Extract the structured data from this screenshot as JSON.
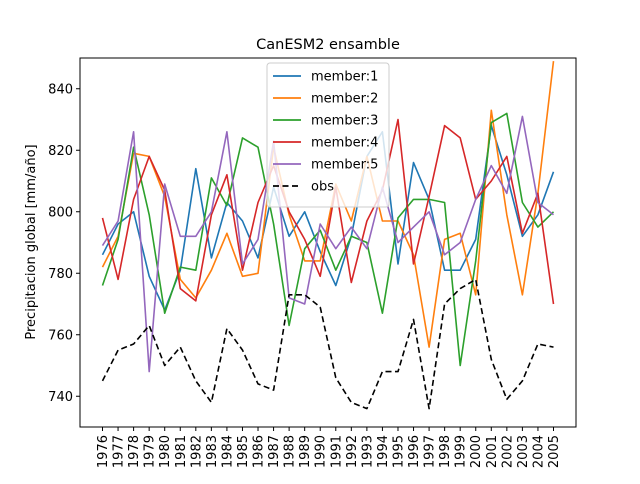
{
  "chart_data": {
    "type": "line",
    "title": "CanESM2 ensamble",
    "xlabel": "",
    "ylabel": "Precipitacion global [mm/año]",
    "x": [
      "1976",
      "1977",
      "1978",
      "1979",
      "1980",
      "1981",
      "1982",
      "1983",
      "1984",
      "1985",
      "1986",
      "1987",
      "1988",
      "1989",
      "1990",
      "1991",
      "1992",
      "1993",
      "1994",
      "1995",
      "1996",
      "1997",
      "1998",
      "1999",
      "2000",
      "2001",
      "2002",
      "2003",
      "2004",
      "2005"
    ],
    "ylim": [
      730,
      850
    ],
    "yticks": [
      740,
      760,
      780,
      800,
      820,
      840
    ],
    "grid": false,
    "legend_position": "upper-center",
    "series": [
      {
        "name": "member:1",
        "color": "#1f77b4",
        "dash": false,
        "values": [
          786,
          796,
          800,
          779,
          768,
          781,
          814,
          785,
          803,
          797,
          785,
          808,
          792,
          800,
          787,
          776,
          792,
          818,
          826,
          783,
          816,
          804,
          781,
          781,
          791,
          828,
          812,
          792,
          799,
          813
        ]
      },
      {
        "name": "member:2",
        "color": "#ff7f0e",
        "dash": false,
        "values": [
          782,
          792,
          819,
          818,
          805,
          778,
          772,
          781,
          793,
          779,
          780,
          821,
          799,
          784,
          784,
          809,
          797,
          818,
          797,
          797,
          786,
          756,
          791,
          793,
          773,
          833,
          799,
          773,
          806,
          849
        ]
      },
      {
        "name": "member:3",
        "color": "#2ca02c",
        "dash": false,
        "values": [
          776,
          791,
          821,
          799,
          767,
          782,
          781,
          811,
          802,
          824,
          821,
          796,
          763,
          788,
          794,
          781,
          792,
          790,
          767,
          798,
          804,
          804,
          803,
          750,
          784,
          829,
          832,
          803,
          795,
          800
        ]
      },
      {
        "name": "member:4",
        "color": "#d62728",
        "dash": false,
        "values": [
          798,
          778,
          804,
          818,
          807,
          775,
          771,
          799,
          812,
          781,
          803,
          815,
          800,
          791,
          779,
          808,
          777,
          797,
          807,
          830,
          783,
          805,
          828,
          824,
          804,
          810,
          818,
          793,
          806,
          770
        ]
      },
      {
        "name": "member:5",
        "color": "#9467bd",
        "dash": false,
        "values": [
          789,
          797,
          826,
          748,
          809,
          792,
          792,
          800,
          826,
          783,
          791,
          823,
          772,
          770,
          796,
          788,
          795,
          788,
          808,
          790,
          795,
          800,
          786,
          790,
          804,
          815,
          806,
          831,
          803,
          799
        ]
      },
      {
        "name": "obs",
        "color": "#000000",
        "dash": true,
        "values": [
          745,
          755,
          757,
          763,
          750,
          756,
          745,
          738,
          762,
          755,
          744,
          742,
          773,
          773,
          769,
          746,
          738,
          736,
          748,
          748,
          765,
          736,
          770,
          775,
          778,
          752,
          739,
          745,
          757,
          756
        ]
      }
    ]
  }
}
